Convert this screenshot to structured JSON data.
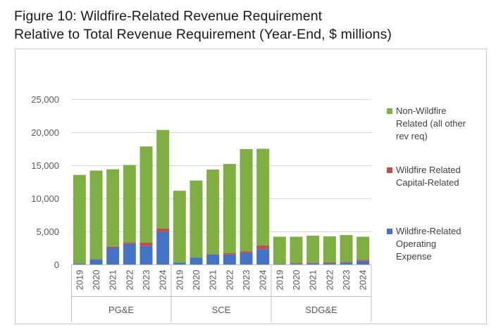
{
  "caption": {
    "line1": "Figure 10: Wildfire-Related Revenue Requirement",
    "line2": "Relative to Total Revenue Requirement (Year-End, $ millions)"
  },
  "chart_data": {
    "type": "bar",
    "stacked": true,
    "title": "Figure 10: Wildfire-Related Revenue Requirement Relative to Total Revenue Requirement (Year-End, $ millions)",
    "groups": [
      {
        "name": "PG&E",
        "years": [
          "2019",
          "2020",
          "2021",
          "2022",
          "2023",
          "2024"
        ]
      },
      {
        "name": "SCE",
        "years": [
          "2019",
          "2020",
          "2021",
          "2022",
          "2023",
          "2024"
        ]
      },
      {
        "name": "SDG&E",
        "years": [
          "2019",
          "2020",
          "2021",
          "2022",
          "2023",
          "2024"
        ]
      }
    ],
    "series": [
      {
        "name": "Wildfire-Related Operating Expense",
        "color": "#4472c4",
        "values": [
          100,
          750,
          2500,
          3100,
          2800,
          4900,
          300,
          1050,
          1500,
          1500,
          1750,
          2300,
          50,
          100,
          200,
          200,
          300,
          550
        ]
      },
      {
        "name": "Wildfire Related Capital-Related",
        "color": "#c0504d",
        "values": [
          0,
          50,
          200,
          200,
          500,
          550,
          0,
          0,
          50,
          200,
          250,
          600,
          0,
          100,
          50,
          150,
          100,
          150
        ]
      },
      {
        "name": "Non-Wildfire Related (all other rev req)",
        "color": "#7fae42",
        "values": [
          13450,
          13400,
          11700,
          11750,
          14550,
          14900,
          10850,
          11650,
          12800,
          13500,
          15450,
          14600,
          4150,
          4000,
          4100,
          3900,
          4050,
          3500
        ]
      }
    ],
    "yticks": [
      "0",
      "5,000",
      "10,000",
      "15,000",
      "20,000",
      "25,000"
    ],
    "ylim": [
      0,
      25000
    ],
    "grid": true,
    "legend": {
      "placement": "right",
      "order": [
        2,
        1,
        0
      ],
      "lines": [
        [
          "Non-Wildfire",
          "Related (all other",
          "rev req)"
        ],
        [
          "Wildfire Related",
          "Capital-Related"
        ],
        [
          "Wildfire-Related",
          "Operating",
          "Expense"
        ]
      ]
    }
  }
}
